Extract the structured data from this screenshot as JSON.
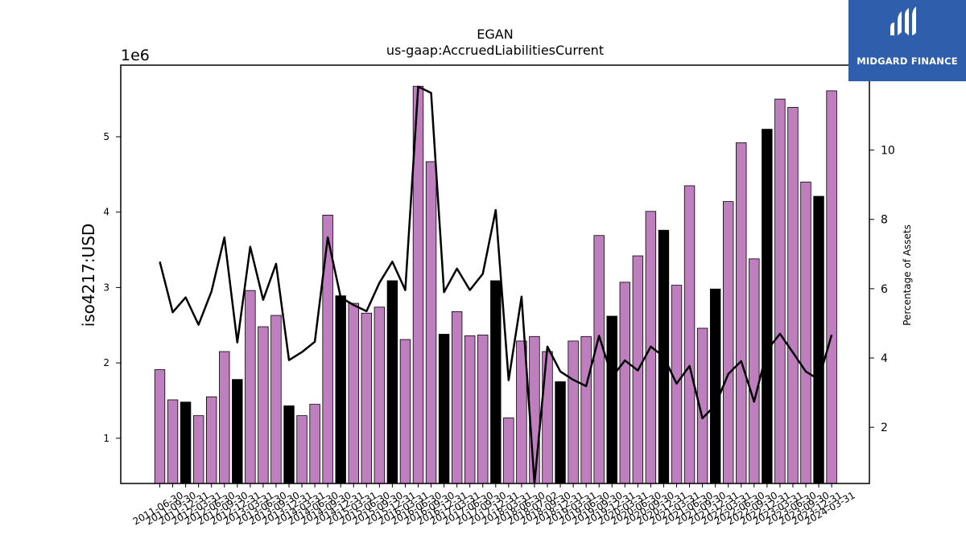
{
  "chart_data": {
    "type": "bar",
    "title": "EGAN",
    "subtitle": "us-gaap:AccruedLiabilitiesCurrent",
    "ylabel": "iso4217:USD",
    "y2label": "Percentage of Assets",
    "y_multiplier_label": "1e6",
    "ylim": [
      0.4,
      5.95
    ],
    "y_ticks": [
      1,
      2,
      3,
      4,
      5
    ],
    "y2lim": [
      0.38,
      12.45
    ],
    "y2_ticks": [
      2,
      4,
      6,
      8,
      10
    ],
    "grid": false,
    "legend": "none",
    "categories": [
      "2011-06-30",
      "2011-09-30",
      "2011-12-31",
      "2012-03-31",
      "2012-06-30",
      "2012-09-30",
      "2012-12-31",
      "2013-03-31",
      "2013-06-30",
      "2013-09-30",
      "2013-12-31",
      "2014-03-31",
      "2014-06-30",
      "2014-09-30",
      "2014-12-31",
      "2015-03-31",
      "2015-06-30",
      "2015-09-30",
      "2015-12-31",
      "2016-03-31",
      "2016-06-30",
      "2016-09-30",
      "2016-12-31",
      "2017-03-31",
      "2017-06-30",
      "2017-09-30",
      "2017-12-31",
      "2018-03-31",
      "2018-06-30",
      "2018-07-02",
      "2018-09-30",
      "2018-12-31",
      "2019-03-31",
      "2019-06-30",
      "2019-09-30",
      "2019-12-31",
      "2020-03-31",
      "2020-06-30",
      "2020-09-30",
      "2020-12-31",
      "2021-03-31",
      "2021-06-30",
      "2021-09-30",
      "2021-12-31",
      "2022-03-31",
      "2022-06-30",
      "2022-09-30",
      "2022-12-31",
      "2023-03-31",
      "2023-06-30",
      "2023-09-30",
      "2023-12-31",
      "2024-03-31"
    ],
    "x_tick_labels": [
      "2011-06-30",
      "2011-09-30",
      "2011-12-31",
      "2012-03-31",
      "2012-06-30",
      "2012-09-30",
      "2012-12-31",
      "2013-03-31",
      "2013-06-30",
      "2013-09-30",
      "2013-12-31",
      "2014-03-31",
      "2014-06-30",
      "2014-09-30",
      "2014-12-31",
      "2015-03-31",
      "2015-06-30",
      "2015-09-30",
      "2015-12-31",
      "2016-03-31",
      "2016-06-30",
      "2016-09-30",
      "2016-12-31",
      "2017-03-31",
      "2017-06-30",
      "2017-09-30",
      "2017-12-31",
      "2018-03-31",
      "2018-06-30",
      "2018-07-02",
      "2018-09-30",
      "2018-12-31",
      "2019-03-31",
      "2019-06-30",
      "2019-09-30",
      "2019-12-31",
      "2020-03-31",
      "2020-06-30",
      "2020-09-30",
      "2020-12-31",
      "2021-03-31",
      "2021-06-30",
      "2021-09-30",
      "2021-12-31",
      "2022-03-31",
      "2022-06-30",
      "2022-09-30",
      "2022-12-31",
      "2023-03-31",
      "2023-06-30",
      "2023-09-30",
      "2023-12-31",
      "2024-03-31"
    ],
    "series": [
      {
        "kind": "bar",
        "axis": "left",
        "values": [
          1.91,
          1.51,
          1.48,
          1.3,
          1.55,
          2.15,
          1.78,
          2.96,
          2.48,
          2.63,
          1.43,
          1.3,
          1.45,
          3.96,
          2.89,
          2.79,
          2.66,
          2.74,
          3.09,
          2.31,
          5.67,
          4.67,
          2.38,
          2.68,
          2.36,
          2.37,
          3.09,
          1.27,
          2.29,
          2.35,
          2.15,
          1.75,
          2.29,
          2.35,
          3.69,
          2.62,
          3.07,
          3.42,
          4.01,
          3.76,
          3.03,
          4.35,
          2.46,
          2.98,
          4.14,
          4.92,
          3.38,
          5.1,
          5.5,
          5.39,
          4.4,
          4.21,
          5.61
        ],
        "highlight": [
          false,
          false,
          true,
          false,
          false,
          false,
          true,
          false,
          false,
          false,
          true,
          false,
          false,
          false,
          true,
          false,
          false,
          false,
          true,
          false,
          false,
          false,
          true,
          false,
          false,
          false,
          true,
          false,
          false,
          false,
          false,
          true,
          false,
          false,
          false,
          true,
          false,
          false,
          false,
          true,
          false,
          false,
          false,
          true,
          false,
          false,
          false,
          true,
          false,
          false,
          false,
          true,
          false
        ]
      },
      {
        "kind": "line",
        "axis": "right",
        "values": [
          6.78,
          5.32,
          5.75,
          4.96,
          5.92,
          7.48,
          4.45,
          7.21,
          5.68,
          6.72,
          3.94,
          4.17,
          4.47,
          7.48,
          5.75,
          5.53,
          5.35,
          6.17,
          6.78,
          5.96,
          11.83,
          11.65,
          5.9,
          6.58,
          5.96,
          6.43,
          8.27,
          3.36,
          5.77,
          0.38,
          4.33,
          3.61,
          3.37,
          3.19,
          4.64,
          3.45,
          3.93,
          3.64,
          4.33,
          4.04,
          3.26,
          3.77,
          2.26,
          2.64,
          3.54,
          3.91,
          2.74,
          4.22,
          4.7,
          4.16,
          3.61,
          3.38,
          4.67
        ]
      }
    ],
    "colors": {
      "bar": "#bf7fbf",
      "bar_highlight": "#000000",
      "bar_edge": "#000000",
      "line": "#000000",
      "logo_bg": "#2f5ead"
    }
  },
  "logo": {
    "text": "MIDGARD FINANCE",
    "icon": "midgard-m-icon"
  }
}
